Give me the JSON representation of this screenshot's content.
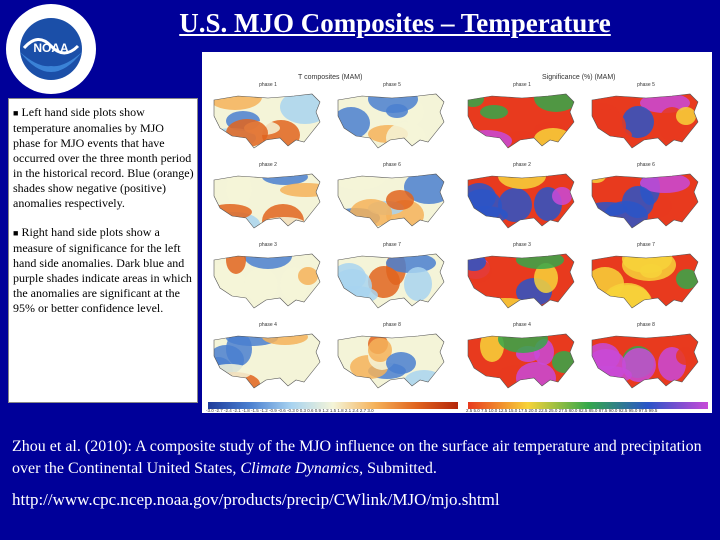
{
  "slide": {
    "title": "U.S. MJO Composites – Temperature",
    "logo": {
      "text": "NOAA",
      "ring_text": "NATIONAL OCEANIC AND ATMOSPHERIC ADMINISTRATION · U.S. DEPARTMENT OF COMMERCE"
    },
    "bullets": [
      "Left hand side plots show temperature anomalies by MJO phase for MJO events that have occurred over the three month period in the historical record. Blue (orange) shades show negative (positive) anomalies respectively.",
      "Right hand side plots show a measure of significance for the left hand side anomalies. Dark blue and purple shades indicate areas in which the anomalies are significant at the 95% or better confidence level."
    ],
    "citation_plain": "Zhou et al. (2010): A composite study of the MJO influence on the surface air temperature and precipitation over the Continental United States,",
    "citation_journal": "Climate Dynamics",
    "citation_tail": ", Submitted.",
    "url": "http://www.cpc.ncep.noaa.gov/products/precip/CWlink/MJO/mjo.shtml"
  },
  "figure": {
    "left_header": "T composites (MAM)",
    "right_header": "Significance (%) (MAM)",
    "panels": {
      "left_a": [
        "phase 1",
        "phase 2",
        "phase 3",
        "phase 4"
      ],
      "left_b": [
        "phase 5",
        "phase 6",
        "phase 7",
        "phase 8"
      ],
      "right_a": [
        "phase 1",
        "phase 2",
        "phase 3",
        "phase 4"
      ],
      "right_b": [
        "phase 5",
        "phase 6",
        "phase 7",
        "phase 8"
      ]
    },
    "left_ticks": "-3.0 -2.7 -2.4 -2.1 -1.8 -1.5 -1.2 -0.9 -0.6 -0.3 0 0.3 0.6 0.9 1.2 1.5 1.8 2.1 2.4 2.7 3.0",
    "right_ticks": "2.5 5.0 7.5 10.0 12.5 15.0 17.5 20.0 22.5 25.0 27.5 80.0 82.5 85.0 87.5 90.0 92.5 95.0 97.5 99.5",
    "colors": {
      "cold": "#4a7fd0",
      "cool": "#a8d3f0",
      "neutral": "#f4f4d8",
      "warm": "#f5b25a",
      "hot": "#e0641e",
      "sig_low": "#e83a1e",
      "sig_mid": "#f7d33a",
      "sig_hi": "#35a84a",
      "sig_top": "#2a55c8",
      "sig_max": "#c84ad8"
    }
  }
}
